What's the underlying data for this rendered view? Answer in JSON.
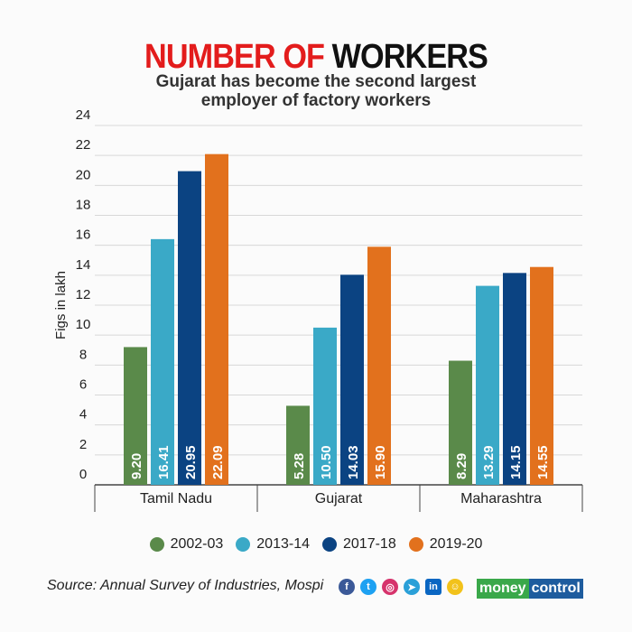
{
  "chart_data": {
    "type": "bar",
    "title_part1": "NUMBER OF",
    "title_part2": "WORKERS",
    "subtitle_line1": "Gujarat has become the second largest",
    "subtitle_line2": "employer of factory workers",
    "ylabel": "Figs in lakh",
    "ylim": [
      0,
      24
    ],
    "yticks": [
      0,
      2,
      4,
      6,
      8,
      10,
      12,
      14,
      16,
      18,
      20,
      22,
      24
    ],
    "grid": true,
    "legend_placement": "bottom",
    "categories": [
      "Tamil Nadu",
      "Gujarat",
      "Maharashtra"
    ],
    "series": [
      {
        "name": "2002-03",
        "color": "#5a8a4a",
        "values": [
          9.2,
          5.28,
          8.29
        ],
        "labels": [
          "9.20",
          "5.28",
          "8.29"
        ]
      },
      {
        "name": "2013-14",
        "color": "#3aa9c7",
        "values": [
          16.41,
          10.5,
          13.29
        ],
        "labels": [
          "16.41",
          "10.50",
          "13.29"
        ]
      },
      {
        "name": "2017-18",
        "color": "#0b4382",
        "values": [
          20.95,
          14.03,
          14.15
        ],
        "labels": [
          "20.95",
          "14.03",
          "14.15"
        ]
      },
      {
        "name": "2019-20",
        "color": "#e2711d",
        "values": [
          22.09,
          15.9,
          14.55
        ],
        "labels": [
          "22.09",
          "15.90",
          "14.55"
        ]
      }
    ]
  },
  "footer": {
    "source": "Source: Annual Survey of Industries, Mospi",
    "social_icons": [
      "facebook-icon",
      "twitter-icon",
      "instagram-icon",
      "telegram-icon",
      "linkedin-icon",
      "snapchat-icon"
    ],
    "logo": "moneycontrol"
  }
}
